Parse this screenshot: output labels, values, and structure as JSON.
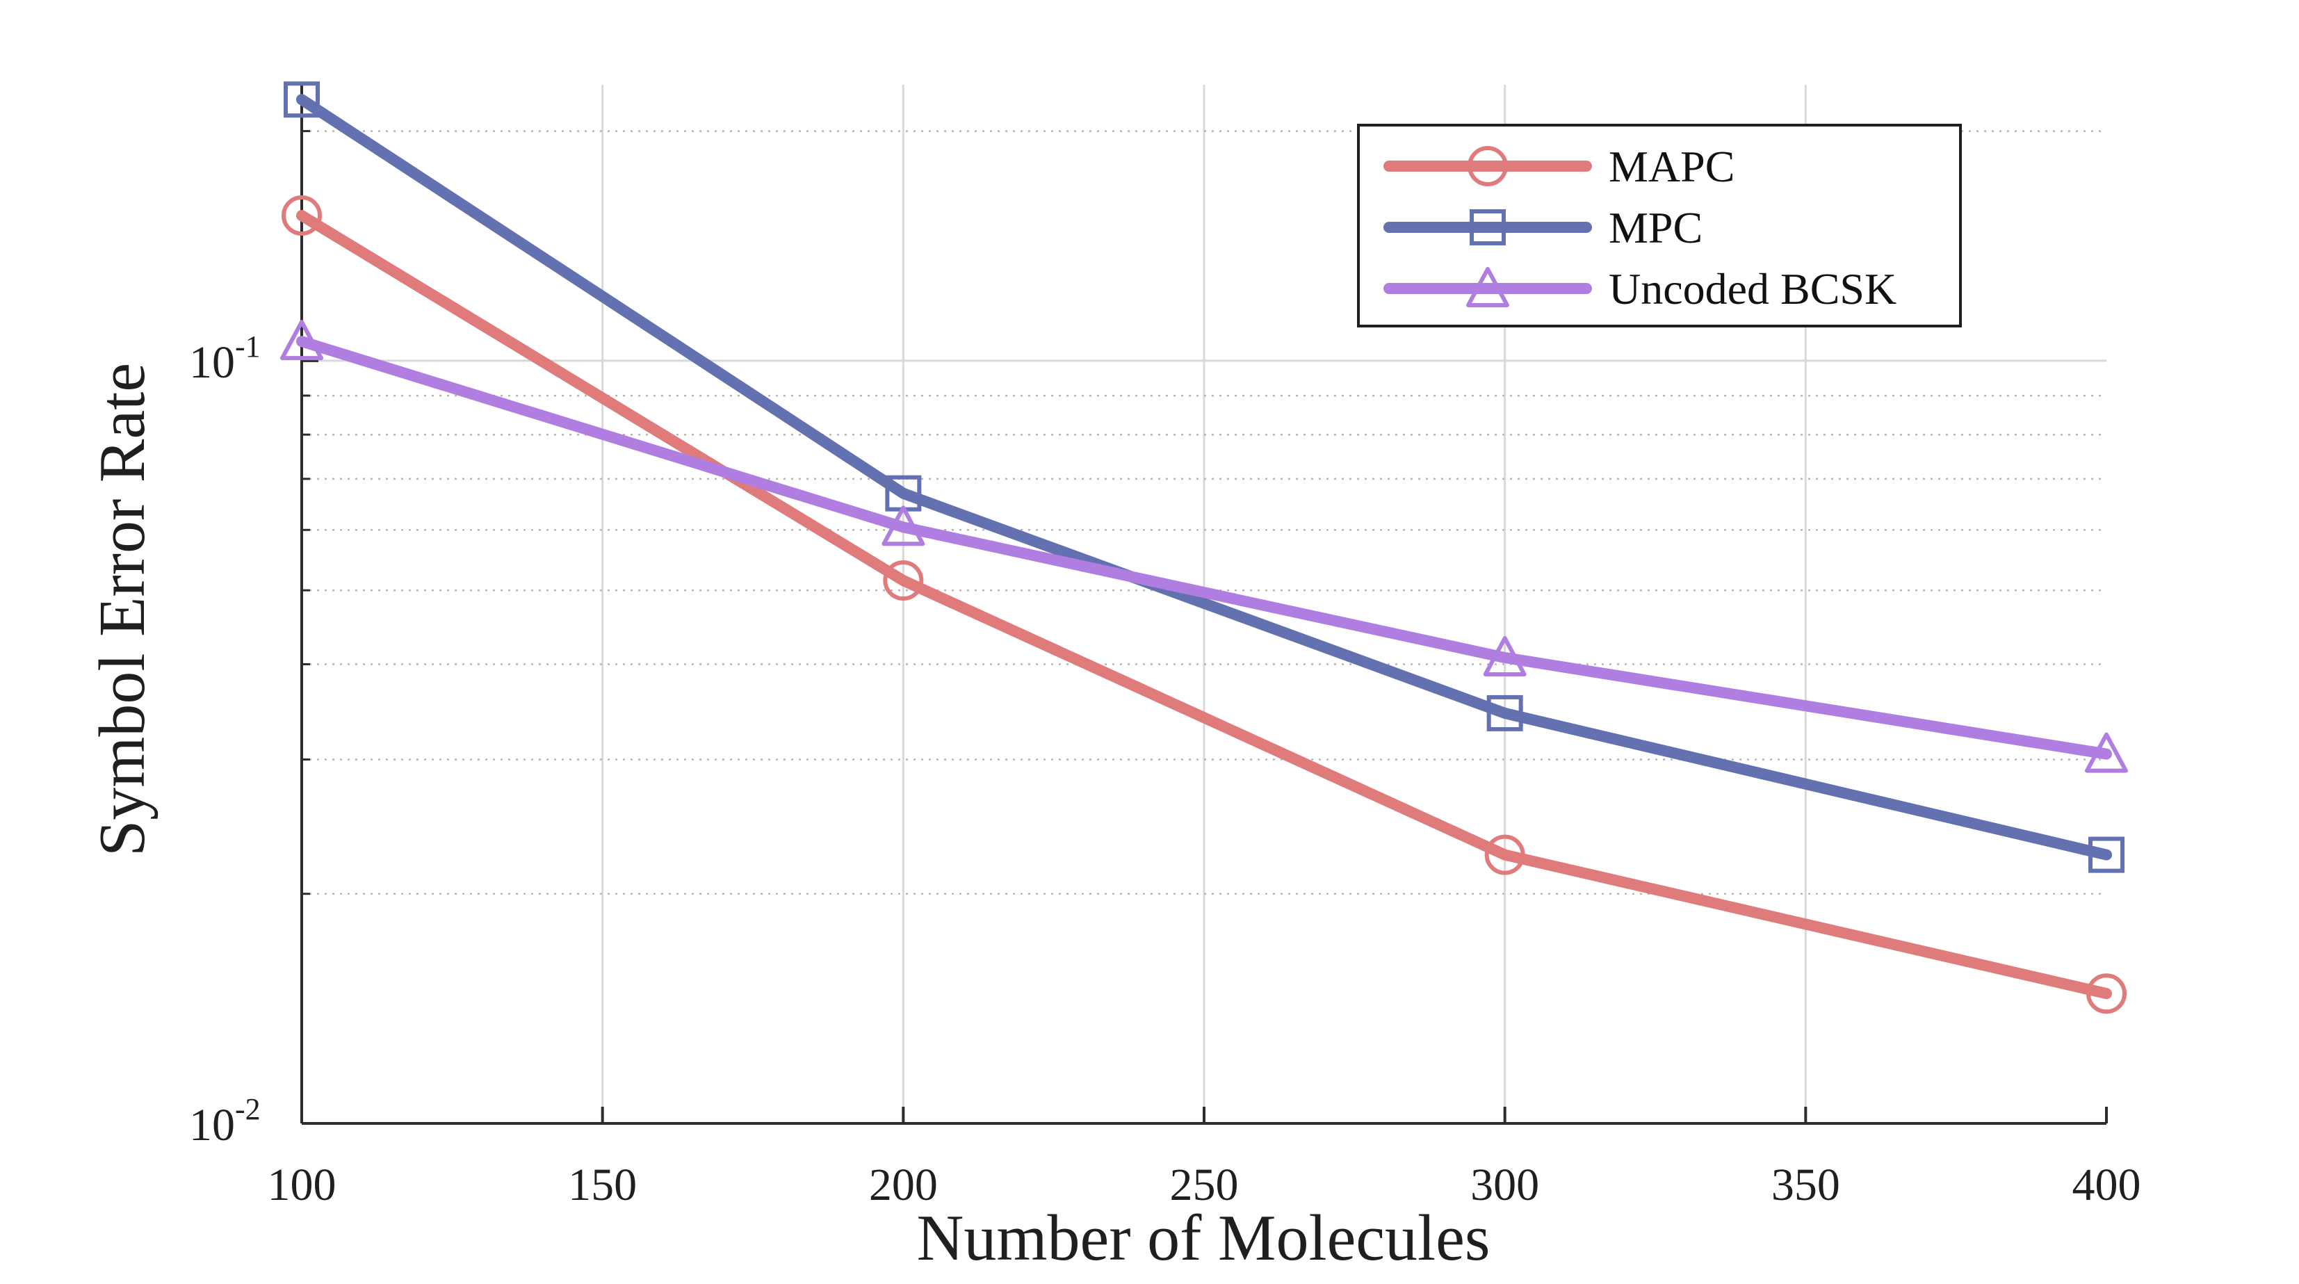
{
  "chart_data": {
    "type": "line",
    "title": "",
    "xlabel": "Number of Molecules",
    "ylabel": "Symbol Error Rate",
    "x_scale": "linear",
    "y_scale": "log",
    "xlim": [
      100,
      400
    ],
    "ylim": [
      0.01,
      0.23
    ],
    "xticks": [
      100,
      150,
      200,
      250,
      300,
      350,
      400
    ],
    "xtick_labels": [
      "100",
      "150",
      "200",
      "250",
      "300",
      "350",
      "400"
    ],
    "yticks": [
      {
        "value": 0.1,
        "base": "10",
        "exp": "-1"
      },
      {
        "value": 0.01,
        "base": "10",
        "exp": "-2"
      }
    ],
    "grid": true,
    "minor_grid": true,
    "legend_position": "top-right",
    "series": [
      {
        "name": "MAPC",
        "marker": "circle",
        "color": "#e07b7b",
        "x": [
          100,
          200,
          300,
          400
        ],
        "y": [
          0.155,
          0.0515,
          0.0225,
          0.0148
        ]
      },
      {
        "name": "MPC",
        "marker": "square",
        "color": "#6471b0",
        "x": [
          100,
          200,
          300,
          400
        ],
        "y": [
          0.22,
          0.067,
          0.0345,
          0.0225
        ]
      },
      {
        "name": "Uncoded BCSK",
        "marker": "triangle",
        "color": "#b07ee0",
        "x": [
          100,
          200,
          300,
          400
        ],
        "y": [
          0.106,
          0.0605,
          0.0408,
          0.0305
        ]
      }
    ]
  }
}
